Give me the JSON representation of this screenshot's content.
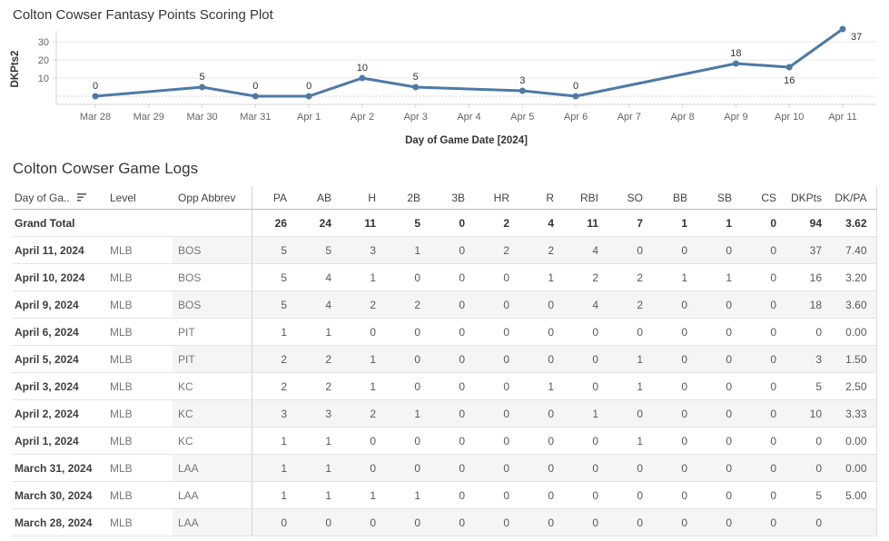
{
  "chart_data": {
    "type": "line",
    "title": "Colton Cowser Fantasy Points Scoring Plot",
    "xlabel": "Day of Game Date [2024]",
    "ylabel": "DKPts2",
    "x_ticks": [
      "Mar 28",
      "Mar 29",
      "Mar 30",
      "Mar 31",
      "Apr 1",
      "Apr 2",
      "Apr 3",
      "Apr 4",
      "Apr 5",
      "Apr 6",
      "Apr 7",
      "Apr 8",
      "Apr 9",
      "Apr 10",
      "Apr 11"
    ],
    "y_ticks": [
      10,
      20,
      30
    ],
    "ylim": [
      -5,
      40
    ],
    "grid": true,
    "legend": false,
    "line_color": "#4e79a7",
    "points": [
      {
        "x": "Mar 28",
        "day_index": 0,
        "value": 0,
        "label_position": "above"
      },
      {
        "x": "Mar 30",
        "day_index": 2,
        "value": 5,
        "label_position": "above"
      },
      {
        "x": "Mar 31",
        "day_index": 3,
        "value": 0,
        "label_position": "above"
      },
      {
        "x": "Apr 1",
        "day_index": 4,
        "value": 0,
        "label_position": "above"
      },
      {
        "x": "Apr 2",
        "day_index": 5,
        "value": 10,
        "label_position": "above"
      },
      {
        "x": "Apr 3",
        "day_index": 6,
        "value": 5,
        "label_position": "above"
      },
      {
        "x": "Apr 5",
        "day_index": 8,
        "value": 3,
        "label_position": "above"
      },
      {
        "x": "Apr 6",
        "day_index": 9,
        "value": 0,
        "label_position": "above"
      },
      {
        "x": "Apr 9",
        "day_index": 12,
        "value": 18,
        "label_position": "above"
      },
      {
        "x": "Apr 10",
        "day_index": 13,
        "value": 16,
        "label_position": "below"
      },
      {
        "x": "Apr 11",
        "day_index": 14,
        "value": 37,
        "label_position": "right"
      }
    ]
  },
  "table": {
    "title": "Colton Cowser Game Logs",
    "columns": [
      "Day of Ga..",
      "Level",
      "Opp Abbrev",
      "PA",
      "AB",
      "H",
      "2B",
      "3B",
      "HR",
      "R",
      "RBI",
      "SO",
      "BB",
      "SB",
      "CS",
      "DKPts",
      "DK/PA"
    ],
    "sort_icon": "sort-descending-icon",
    "grand_total": {
      "label": "Grand Total",
      "values": [
        "26",
        "24",
        "11",
        "5",
        "0",
        "2",
        "4",
        "11",
        "7",
        "1",
        "1",
        "0",
        "94",
        "3.62"
      ]
    },
    "rows": [
      {
        "date": "April 11, 2024",
        "level": "MLB",
        "opp": "BOS",
        "values": [
          "5",
          "5",
          "3",
          "1",
          "0",
          "2",
          "2",
          "4",
          "0",
          "0",
          "0",
          "0",
          "37",
          "7.40"
        ],
        "banded": true
      },
      {
        "date": "April 10, 2024",
        "level": "MLB",
        "opp": "BOS",
        "values": [
          "5",
          "4",
          "1",
          "0",
          "0",
          "0",
          "1",
          "2",
          "2",
          "1",
          "1",
          "0",
          "16",
          "3.20"
        ],
        "banded": false
      },
      {
        "date": "April 9, 2024",
        "level": "MLB",
        "opp": "BOS",
        "values": [
          "5",
          "4",
          "2",
          "2",
          "0",
          "0",
          "0",
          "4",
          "2",
          "0",
          "0",
          "0",
          "18",
          "3.60"
        ],
        "banded": true
      },
      {
        "date": "April 6, 2024",
        "level": "MLB",
        "opp": "PIT",
        "values": [
          "1",
          "1",
          "0",
          "0",
          "0",
          "0",
          "0",
          "0",
          "0",
          "0",
          "0",
          "0",
          "0",
          "0.00"
        ],
        "banded": false
      },
      {
        "date": "April 5, 2024",
        "level": "MLB",
        "opp": "PIT",
        "values": [
          "2",
          "2",
          "1",
          "0",
          "0",
          "0",
          "0",
          "0",
          "1",
          "0",
          "0",
          "0",
          "3",
          "1.50"
        ],
        "banded": true
      },
      {
        "date": "April 3, 2024",
        "level": "MLB",
        "opp": "KC",
        "values": [
          "2",
          "2",
          "1",
          "0",
          "0",
          "0",
          "1",
          "0",
          "1",
          "0",
          "0",
          "0",
          "5",
          "2.50"
        ],
        "banded": false
      },
      {
        "date": "April 2, 2024",
        "level": "MLB",
        "opp": "KC",
        "values": [
          "3",
          "3",
          "2",
          "1",
          "0",
          "0",
          "0",
          "1",
          "0",
          "0",
          "0",
          "0",
          "10",
          "3.33"
        ],
        "banded": true
      },
      {
        "date": "April 1, 2024",
        "level": "MLB",
        "opp": "KC",
        "values": [
          "1",
          "1",
          "0",
          "0",
          "0",
          "0",
          "0",
          "0",
          "1",
          "0",
          "0",
          "0",
          "0",
          "0.00"
        ],
        "banded": false
      },
      {
        "date": "March 31, 2024",
        "level": "MLB",
        "opp": "LAA",
        "values": [
          "1",
          "1",
          "0",
          "0",
          "0",
          "0",
          "0",
          "0",
          "0",
          "0",
          "0",
          "0",
          "0",
          "0.00"
        ],
        "banded": true
      },
      {
        "date": "March 30, 2024",
        "level": "MLB",
        "opp": "LAA",
        "values": [
          "1",
          "1",
          "1",
          "1",
          "0",
          "0",
          "0",
          "0",
          "0",
          "0",
          "0",
          "0",
          "5",
          "5.00"
        ],
        "banded": false
      },
      {
        "date": "March 28, 2024",
        "level": "MLB",
        "opp": "LAA",
        "values": [
          "0",
          "0",
          "0",
          "0",
          "0",
          "0",
          "0",
          "0",
          "0",
          "0",
          "0",
          "0",
          "0",
          ""
        ],
        "banded": true
      }
    ]
  },
  "colors": {
    "line": "#4e79a7",
    "row_band": "#f5f5f5",
    "grid_line": "#ebebeb",
    "axis_line": "#d6d6d6",
    "zero_line": "#b3b3b3"
  }
}
